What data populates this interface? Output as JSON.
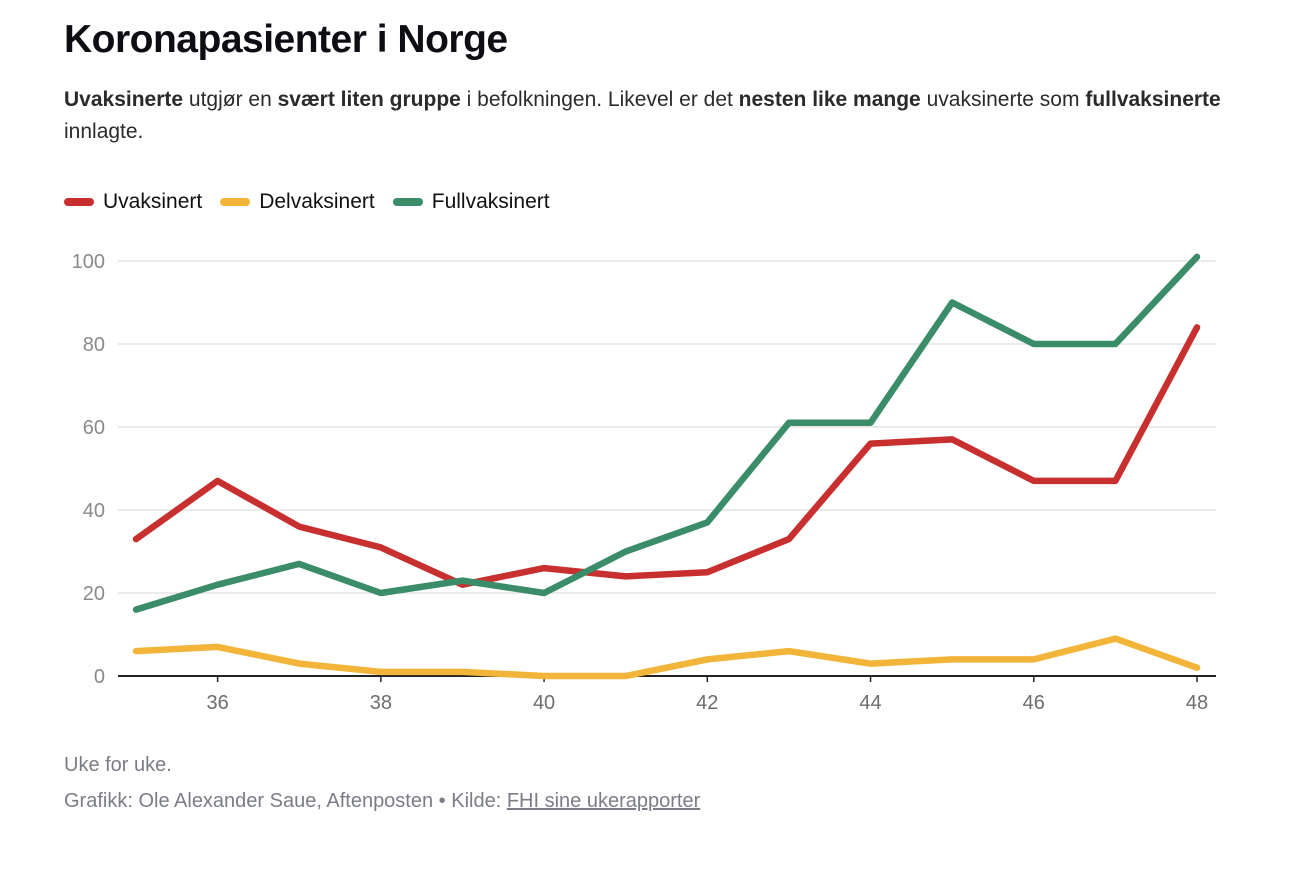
{
  "header": {
    "title": "Koronapasienter i Norge",
    "subtitle": {
      "b1": "Uvaksinerte",
      "t1": " utgjør en ",
      "b2": "svært liten gruppe",
      "t2": " i befolkningen. Likevel er det ",
      "b3": "nesten like mange",
      "t3": " uvaksinerte som ",
      "b4": "fullvaksinerte",
      "t4": " innlagte."
    }
  },
  "footer": {
    "note": "Uke for uke.",
    "credit_prefix": "Grafikk: Ole Alexander Saue, Aftenposten • Kilde: ",
    "credit_link": "FHI sine ukerapporter"
  },
  "chart_data": {
    "type": "line",
    "x": [
      35,
      36,
      37,
      38,
      39,
      40,
      41,
      42,
      43,
      44,
      45,
      46,
      47,
      48
    ],
    "x_ticks": [
      36,
      38,
      40,
      42,
      44,
      46,
      48
    ],
    "y_ticks": [
      0,
      20,
      40,
      60,
      80,
      100
    ],
    "ylim": [
      0,
      100
    ],
    "grid": true,
    "legend": "top-left",
    "series": [
      {
        "name": "Uvaksinert",
        "color": "#c8302f",
        "values": [
          33,
          47,
          36,
          31,
          22,
          26,
          24,
          25,
          33,
          56,
          57,
          47,
          47,
          84
        ]
      },
      {
        "name": "Delvaksinert",
        "color": "#f2b53a",
        "values": [
          6,
          7,
          3,
          1,
          1,
          0,
          0,
          4,
          6,
          3,
          4,
          4,
          9,
          2
        ]
      },
      {
        "name": "Fullvaksinert",
        "color": "#3b8c68",
        "values": [
          16,
          22,
          27,
          20,
          23,
          20,
          30,
          37,
          61,
          61,
          90,
          80,
          80,
          101
        ]
      }
    ]
  }
}
